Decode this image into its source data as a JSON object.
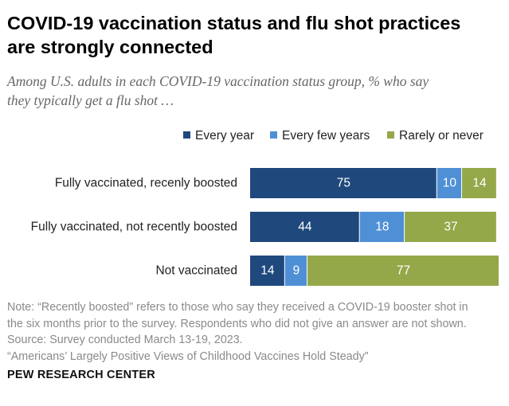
{
  "title_line1": "COVID-19 vaccination status and flu shot practices",
  "title_line2": "are strongly connected",
  "subtitle_line1": "Among U.S. adults in each COVID-19 vaccination status group, % who say",
  "subtitle_line2": "they typically get a flu shot …",
  "colors": {
    "every_year": "#1f487c",
    "every_few_years": "#4f8fd6",
    "rarely_or_never": "#94a849"
  },
  "chart_data": {
    "type": "bar",
    "orientation": "horizontal",
    "stacked": true,
    "categories": [
      "Fully vaccinated, recenly boosted",
      "Fully vaccinated, not recently boosted",
      "Not vaccinated"
    ],
    "series": [
      {
        "name": "Every year",
        "values": [
          75,
          44,
          14
        ]
      },
      {
        "name": "Every few years",
        "values": [
          10,
          18,
          9
        ]
      },
      {
        "name": "Rarely or never",
        "values": [
          14,
          37,
          77
        ]
      }
    ],
    "xlim": [
      0,
      100
    ],
    "grid": false,
    "legend": "top-right",
    "data_labels": true
  },
  "note_lines": [
    "Note: “Recently boosted” refers to those who say they received a COVID-19 booster shot in",
    "the six months prior to the survey. Respondents who did not give an answer are not shown.",
    "Source: Survey conducted March 13-19, 2023.",
    "“Americans’ Largely Positive Views of Childhood Vaccines Hold Steady”"
  ],
  "footer": "PEW RESEARCH CENTER"
}
